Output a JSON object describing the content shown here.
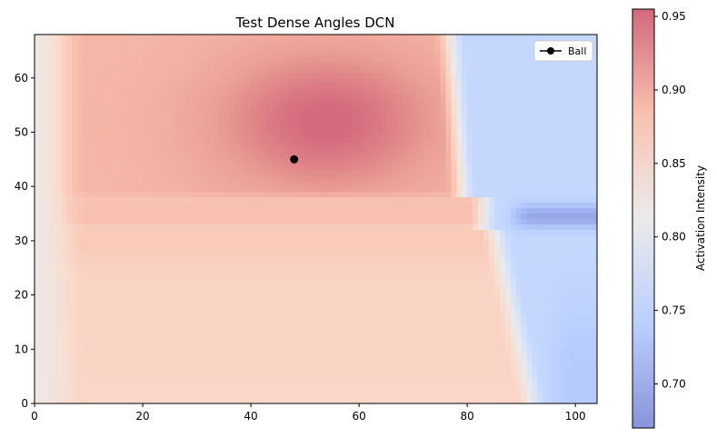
{
  "chart_data": {
    "type": "heatmap",
    "title": "Test Dense Angles DCN",
    "xlabel": "",
    "ylabel": "",
    "xlim": [
      0,
      104
    ],
    "ylim": [
      0,
      68
    ],
    "x_ticks": [
      0,
      20,
      40,
      60,
      80,
      100
    ],
    "y_ticks": [
      0,
      10,
      20,
      30,
      40,
      50,
      60
    ],
    "grid": false,
    "colormap": "coolwarm",
    "colormap_alpha": 0.6,
    "grid_cells": {
      "nx": 104,
      "ny": 68
    },
    "colorbar": {
      "label": "Activation Intensity",
      "range": [
        0.67,
        0.955
      ],
      "ticks": [
        "0.70",
        "0.75",
        "0.80",
        "0.85",
        "0.90",
        "0.95"
      ]
    },
    "field_shape": {
      "peak": {
        "x": 54,
        "y": 52,
        "value": 0.955
      },
      "upper_band_y": [
        38,
        68
      ],
      "middle_band_y": [
        33,
        38
      ],
      "lower_region_value": 0.86,
      "left_edge_value": 0.82,
      "right_region_x_start": 82,
      "right_region_value": 0.755,
      "right_dark_stripe": {
        "x_start": 90,
        "y": [
          32,
          37
        ],
        "value": 0.69
      }
    },
    "legend": {
      "location": "top-right",
      "entries": [
        {
          "label": "Ball",
          "marker": "circle-line",
          "color": "#000000"
        }
      ]
    },
    "ball": {
      "x": 48,
      "y": 45
    }
  }
}
